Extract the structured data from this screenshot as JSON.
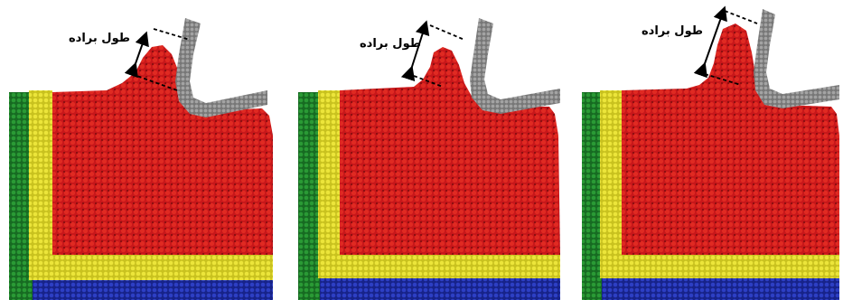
{
  "colors": {
    "workpiece": "#c8171a",
    "workpiece_dark": "#8c0f10",
    "boundary_yellow": "#d7d22a",
    "boundary_green": "#1e7f2a",
    "base_blue": "#1f2fa8",
    "tool_gray": "#8a8a8a",
    "tool_dark": "#5e5e5e",
    "annotation": "#000000"
  },
  "panels": [
    {
      "label": "طول براده"
    },
    {
      "label": "طول براده"
    },
    {
      "label": "طول براده"
    }
  ]
}
